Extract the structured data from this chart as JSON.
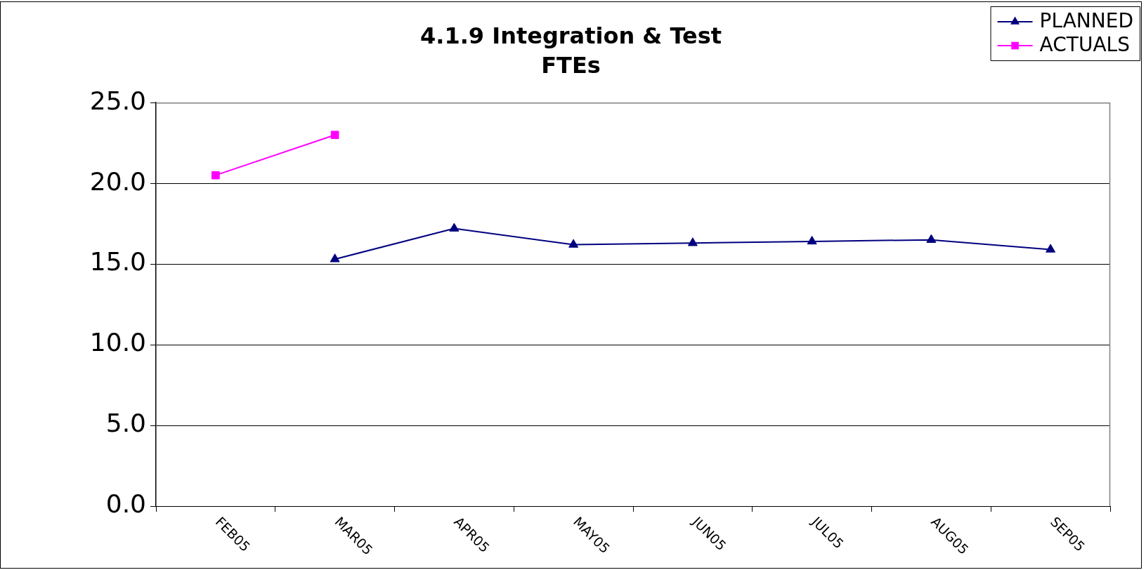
{
  "chart_data": {
    "type": "line",
    "title": "4.1.9 Integration & Test\nFTEs",
    "categories": [
      "FEB05",
      "MAR05",
      "APR05",
      "MAY05",
      "JUN05",
      "JUL05",
      "AUG05",
      "SEP05"
    ],
    "series": [
      {
        "name": "PLANNED",
        "color": "#000080",
        "marker": "triangle",
        "values": [
          null,
          15.3,
          17.2,
          16.2,
          16.3,
          16.4,
          16.5,
          15.9
        ]
      },
      {
        "name": "ACTUALS",
        "color": "#ff00ff",
        "marker": "square",
        "values": [
          20.5,
          23.0,
          null,
          null,
          null,
          null,
          null,
          null
        ]
      }
    ],
    "ylim": [
      0,
      25
    ],
    "yticks": [
      {
        "value": 0,
        "label": "0.0"
      },
      {
        "value": 5,
        "label": "5.0"
      },
      {
        "value": 10,
        "label": "10.0"
      },
      {
        "value": 15,
        "label": "15.0"
      },
      {
        "value": 20,
        "label": "20.0"
      },
      {
        "value": 25,
        "label": "25.0"
      }
    ],
    "grid": "y",
    "legend": "top right"
  }
}
